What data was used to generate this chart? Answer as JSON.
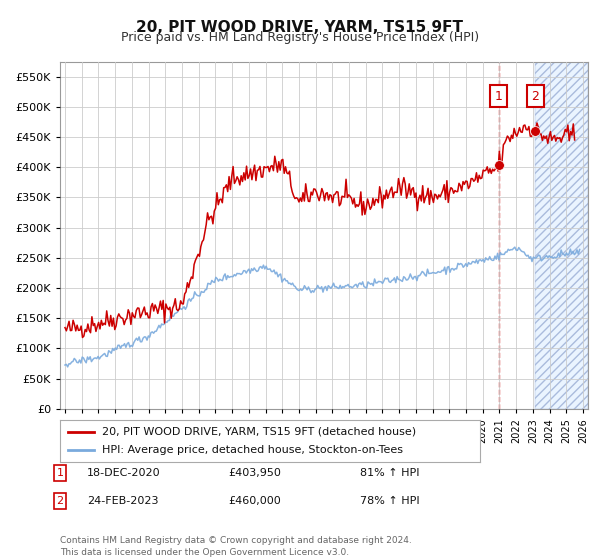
{
  "title": "20, PIT WOOD DRIVE, YARM, TS15 9FT",
  "subtitle": "Price paid vs. HM Land Registry's House Price Index (HPI)",
  "legend_line1": "20, PIT WOOD DRIVE, YARM, TS15 9FT (detached house)",
  "legend_line2": "HPI: Average price, detached house, Stockton-on-Tees",
  "footer": "Contains HM Land Registry data © Crown copyright and database right 2024.\nThis data is licensed under the Open Government Licence v3.0.",
  "transaction1_date": "18-DEC-2020",
  "transaction1_price": "£403,950",
  "transaction1_hpi": "81% ↑ HPI",
  "transaction2_date": "24-FEB-2023",
  "transaction2_price": "£460,000",
  "transaction2_hpi": "78% ↑ HPI",
  "red_color": "#cc0000",
  "blue_color": "#7aaadd",
  "grid_color": "#cccccc",
  "bg_color": "#ffffff",
  "shade_color_blue": "#ddeeff",
  "ylim": [
    0,
    575000
  ],
  "xlim_start": 1994.7,
  "xlim_end": 2026.3,
  "transaction1_x": 2020.96,
  "transaction2_x": 2023.14,
  "transaction1_y": 403950,
  "transaction2_y": 460000,
  "shade_start": 2023.14,
  "shade_end": 2026.3,
  "vline_x": 2020.96
}
